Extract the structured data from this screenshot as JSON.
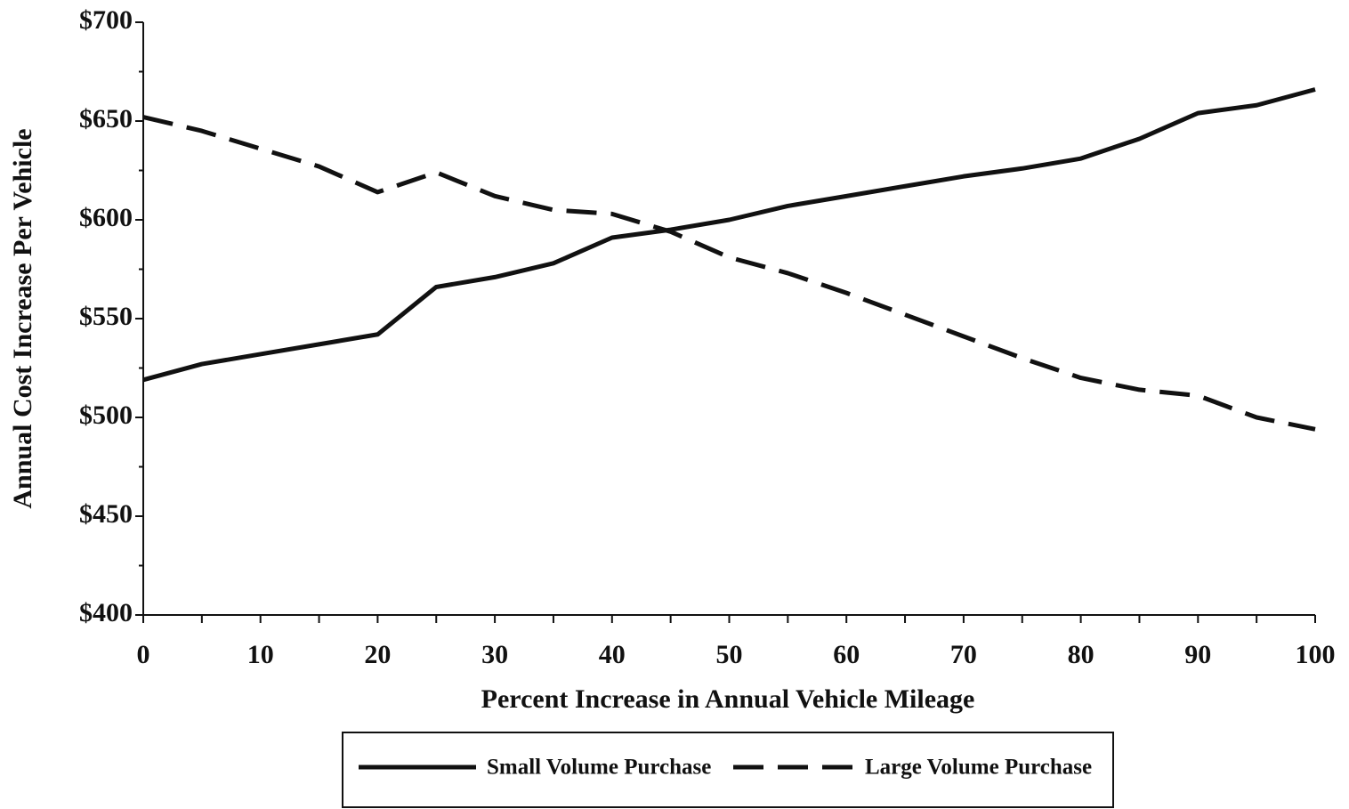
{
  "chart_data": {
    "type": "line",
    "x_label": "Percent Increase in Annual Vehicle Mileage",
    "y_label": "Annual Cost Increase Per Vehicle",
    "x": [
      0,
      5,
      10,
      15,
      20,
      25,
      30,
      35,
      40,
      45,
      50,
      55,
      60,
      65,
      70,
      75,
      80,
      85,
      90,
      95,
      100
    ],
    "series": [
      {
        "name": "Small Volume Purchase",
        "color": "#111111",
        "dash": "solid",
        "values": [
          519,
          527,
          532,
          537,
          542,
          566,
          571,
          578,
          591,
          595,
          600,
          607,
          612,
          617,
          622,
          626,
          631,
          641,
          654,
          658,
          666
        ]
      },
      {
        "name": "Large Volume Purchase",
        "color": "#111111",
        "dash": "dashed",
        "values": [
          652,
          645,
          636,
          627,
          614,
          624,
          612,
          605,
          603,
          594,
          581,
          573,
          563,
          552,
          541,
          530,
          520,
          514,
          511,
          500,
          494
        ]
      }
    ],
    "xlim": [
      0,
      100
    ],
    "xticks": [
      0,
      10,
      20,
      30,
      40,
      50,
      60,
      70,
      80,
      90,
      100
    ],
    "ylim": [
      400,
      700
    ],
    "yticks": [
      {
        "value": 400,
        "label": "$400"
      },
      {
        "value": 450,
        "label": "$450"
      },
      {
        "value": 500,
        "label": "$500"
      },
      {
        "value": 550,
        "label": "$550"
      },
      {
        "value": 600,
        "label": "$600"
      },
      {
        "value": 650,
        "label": "$650"
      },
      {
        "value": 700,
        "label": "$700"
      }
    ],
    "grid": false,
    "legend": "bottom"
  }
}
